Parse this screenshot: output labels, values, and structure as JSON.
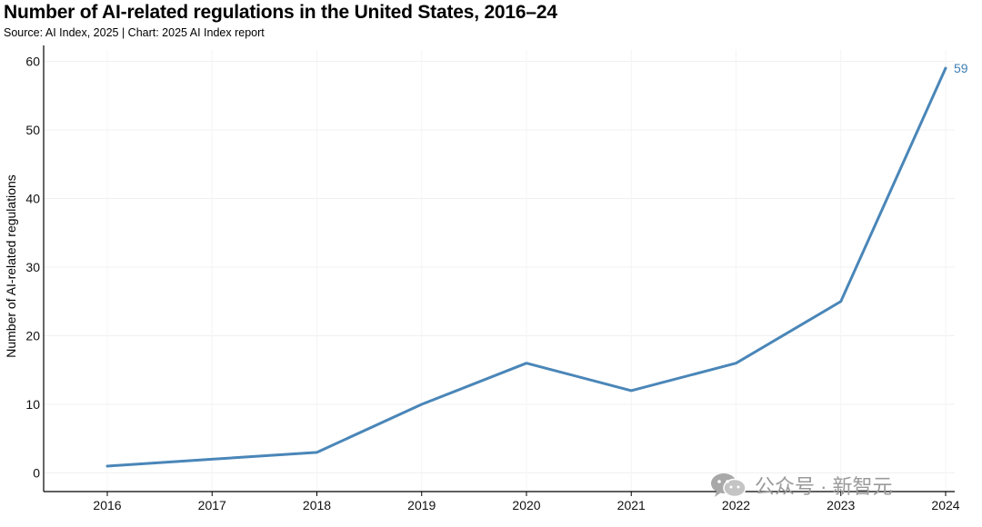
{
  "chart_data": {
    "type": "line",
    "title": "Number of AI-related regulations in the United States, 2016–24",
    "subtitle": "Source: AI Index, 2025 | Chart: 2025 AI Index report",
    "xlabel": "",
    "ylabel": "Number of AI-related regulations",
    "categories": [
      "2016",
      "2017",
      "2018",
      "2019",
      "2020",
      "2021",
      "2022",
      "2023",
      "2024"
    ],
    "series": [
      {
        "name": "AI-related regulations",
        "values": [
          1,
          2,
          3,
          10,
          16,
          12,
          16,
          25,
          59
        ]
      }
    ],
    "ylim": [
      0,
      60
    ],
    "yticks": [
      0,
      10,
      20,
      30,
      40,
      50,
      60
    ],
    "grid": true,
    "end_label": "59",
    "line_color": "#4a86b8"
  },
  "watermark": {
    "text": "公众号 · 新智元",
    "icon": "wechat-icon"
  }
}
